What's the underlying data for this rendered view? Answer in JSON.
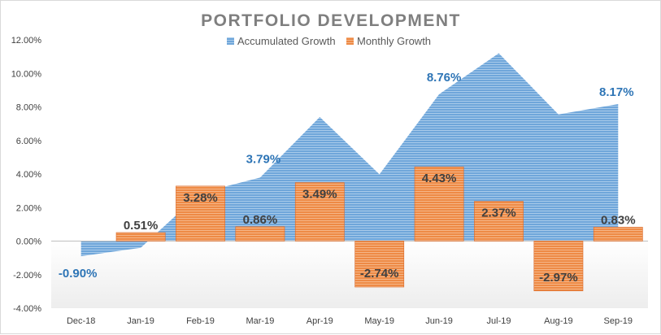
{
  "chart_data": {
    "type": "bar",
    "title": "PORTFOLIO DEVELOPMENT",
    "xlabel": "",
    "ylabel": "",
    "ylim": [
      -4,
      12
    ],
    "yticks": [
      12,
      10,
      8,
      6,
      4,
      2,
      0,
      -2,
      -4
    ],
    "ytick_labels": [
      "12.00%",
      "10.00%",
      "8.00%",
      "6.00%",
      "4.00%",
      "2.00%",
      "0.00%",
      "-2.00%",
      "-4.00%"
    ],
    "categories": [
      "Dec-18",
      "Jan-19",
      "Feb-19",
      "Mar-19",
      "Apr-19",
      "May-19",
      "Jun-19",
      "Jul-19",
      "Aug-19",
      "Sep-19"
    ],
    "legend_position": "top-center",
    "series": [
      {
        "name": "Accumulated Growth",
        "type": "area",
        "color": "#5b9bd5",
        "label_color": "#2e75b6",
        "values": [
          -0.9,
          -0.4,
          2.87,
          3.79,
          7.4,
          3.98,
          8.76,
          11.2,
          7.55,
          8.17
        ],
        "data_labels": [
          "-0.90%",
          null,
          null,
          "3.79%",
          null,
          null,
          "8.76%",
          null,
          null,
          "8.17%"
        ]
      },
      {
        "name": "Monthly Growth",
        "type": "bar",
        "color": "#ed7d31",
        "label_color": "#404040",
        "values": [
          0,
          0.51,
          3.28,
          0.86,
          3.49,
          -2.74,
          4.43,
          2.37,
          -2.97,
          0.83
        ],
        "data_labels": [
          null,
          "0.51%",
          "3.28%",
          "0.86%",
          "3.49%",
          "-2.74%",
          "4.43%",
          "2.37%",
          "-2.97%",
          "0.83%"
        ]
      }
    ]
  }
}
